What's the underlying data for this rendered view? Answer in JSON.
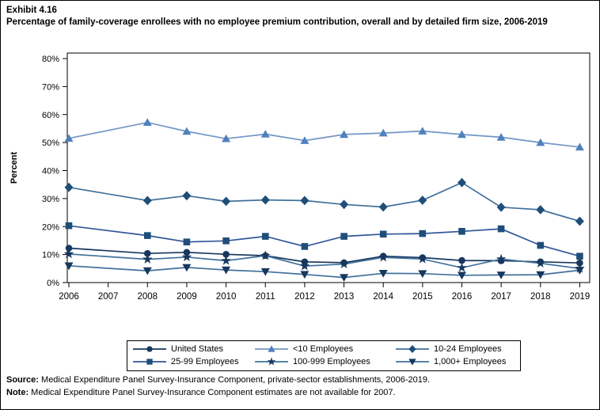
{
  "header": {
    "exhibit": "Exhibit 4.16",
    "title": "Percentage of family-coverage enrollees with no employee premium contribution, overall and by detailed firm size, 2006-2019"
  },
  "footer": {
    "source_label": "Source:",
    "source_text": "Medical Expenditure Panel Survey-Insurance Component, private-sector establishments, 2006-2019.",
    "note_label": "Note:",
    "note_text": "Medical Expenditure Panel Survey-Insurance Component estimates are not available for 2007."
  },
  "chart_data": {
    "type": "line",
    "title": "Percentage of family-coverage enrollees with no employee premium contribution, overall and by detailed firm size, 2006-2019",
    "xlabel": "",
    "ylabel": "Percent",
    "ylim": [
      0,
      80
    ],
    "ytick_step": 10,
    "ytick_suffix": "%",
    "grid": false,
    "legend_position": "bottom",
    "missing_years_note": "2007 estimates not available; lines connect 2006 directly to 2008",
    "categories": [
      "2006",
      "2007",
      "2008",
      "2009",
      "2010",
      "2011",
      "2012",
      "2013",
      "2014",
      "2015",
      "2016",
      "2017",
      "2018",
      "2019"
    ],
    "series": [
      {
        "name": "United States",
        "marker": "circle",
        "marker_color": "#17375E",
        "line_color": "#17375E",
        "values": [
          12.3,
          null,
          10.4,
          10.8,
          10.1,
          9.6,
          7.4,
          7.1,
          9.4,
          8.9,
          7.9,
          7.8,
          7.4,
          7.0
        ]
      },
      {
        "name": "<10 Employees",
        "marker": "triangle-up",
        "marker_color": "#4F81BD",
        "line_color": "#7396C6",
        "values": [
          51.5,
          null,
          57.2,
          54.0,
          51.4,
          53.0,
          50.7,
          52.9,
          53.4,
          54.1,
          52.9,
          51.9,
          50.0,
          48.4
        ]
      },
      {
        "name": "10-24 Employees",
        "marker": "diamond",
        "marker_color": "#1F4E79",
        "line_color": "#41719C",
        "values": [
          34.0,
          null,
          29.3,
          31.0,
          29.0,
          29.5,
          29.3,
          27.9,
          27.0,
          29.4,
          35.7,
          26.9,
          26.0,
          21.9
        ]
      },
      {
        "name": "25-99 Employees",
        "marker": "square",
        "marker_color": "#1F4E79",
        "line_color": "#2F5597",
        "values": [
          20.3,
          null,
          16.8,
          14.5,
          14.9,
          16.5,
          12.9,
          16.5,
          17.3,
          17.5,
          18.3,
          19.2,
          13.3,
          9.4
        ]
      },
      {
        "name": "100-999 Employees",
        "marker": "star",
        "marker_color": "#17375E",
        "line_color": "#41719C",
        "values": [
          10.2,
          null,
          8.3,
          9.1,
          7.8,
          9.6,
          5.9,
          6.6,
          9.0,
          8.4,
          5.3,
          8.4,
          6.9,
          5.0
        ]
      },
      {
        "name": "1,000+ Employees",
        "marker": "triangle-down",
        "marker_color": "#17375E",
        "line_color": "#41719C",
        "values": [
          6.0,
          null,
          4.2,
          5.4,
          4.5,
          3.9,
          2.9,
          1.8,
          3.3,
          3.2,
          2.6,
          2.7,
          2.8,
          4.4
        ]
      }
    ]
  }
}
